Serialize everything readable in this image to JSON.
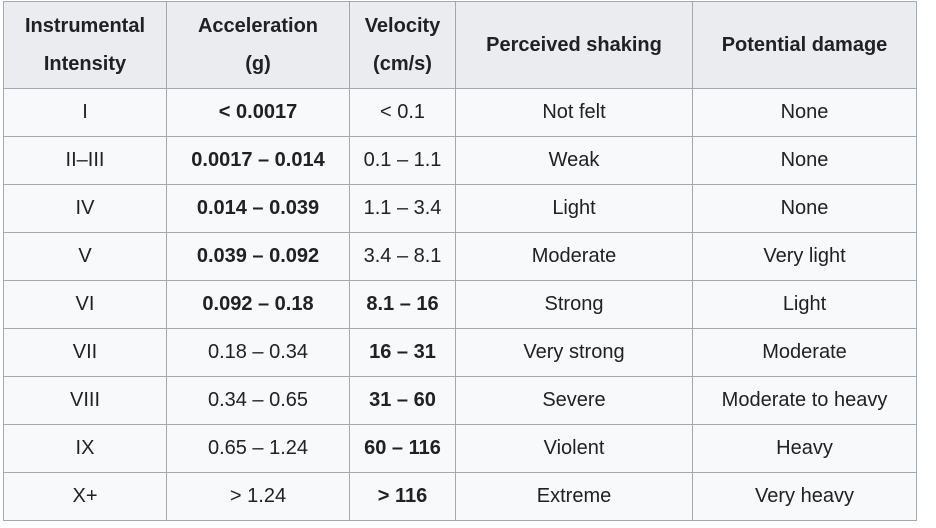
{
  "table": {
    "headers": [
      {
        "line1": "Instrumental",
        "line2": "Intensity"
      },
      {
        "line1": "Acceleration",
        "line2": "(g)"
      },
      {
        "line1": "Velocity",
        "line2": "(cm/s)"
      },
      {
        "line1": "Perceived shaking",
        "line2": ""
      },
      {
        "line1": "Potential damage",
        "line2": ""
      }
    ],
    "rows": [
      {
        "intensity": "I",
        "acceleration": "< 0.0017",
        "velocity": "< 0.1",
        "shaking": "Not felt",
        "damage": "None",
        "bold_acc": true,
        "bold_vel": false
      },
      {
        "intensity": "II–III",
        "acceleration": "0.0017 – 0.014",
        "velocity": "0.1 – 1.1",
        "shaking": "Weak",
        "damage": "None",
        "bold_acc": true,
        "bold_vel": false
      },
      {
        "intensity": "IV",
        "acceleration": "0.014 – 0.039",
        "velocity": "1.1 – 3.4",
        "shaking": "Light",
        "damage": "None",
        "bold_acc": true,
        "bold_vel": false
      },
      {
        "intensity": "V",
        "acceleration": "0.039 – 0.092",
        "velocity": "3.4 – 8.1",
        "shaking": "Moderate",
        "damage": "Very light",
        "bold_acc": true,
        "bold_vel": false
      },
      {
        "intensity": "VI",
        "acceleration": "0.092 – 0.18",
        "velocity": "8.1 – 16",
        "shaking": "Strong",
        "damage": "Light",
        "bold_acc": true,
        "bold_vel": true
      },
      {
        "intensity": "VII",
        "acceleration": "0.18 – 0.34",
        "velocity": "16 – 31",
        "shaking": "Very strong",
        "damage": "Moderate",
        "bold_acc": false,
        "bold_vel": true
      },
      {
        "intensity": "VIII",
        "acceleration": "0.34 – 0.65",
        "velocity": "31 – 60",
        "shaking": "Severe",
        "damage": "Moderate to heavy",
        "bold_acc": false,
        "bold_vel": true
      },
      {
        "intensity": "IX",
        "acceleration": "0.65 – 1.24",
        "velocity": "60 – 116",
        "shaking": "Violent",
        "damage": "Heavy",
        "bold_acc": false,
        "bold_vel": true
      },
      {
        "intensity": "X+",
        "acceleration": "> 1.24",
        "velocity": "> 116",
        "shaking": "Extreme",
        "damage": "Very heavy",
        "bold_acc": false,
        "bold_vel": true
      }
    ]
  }
}
